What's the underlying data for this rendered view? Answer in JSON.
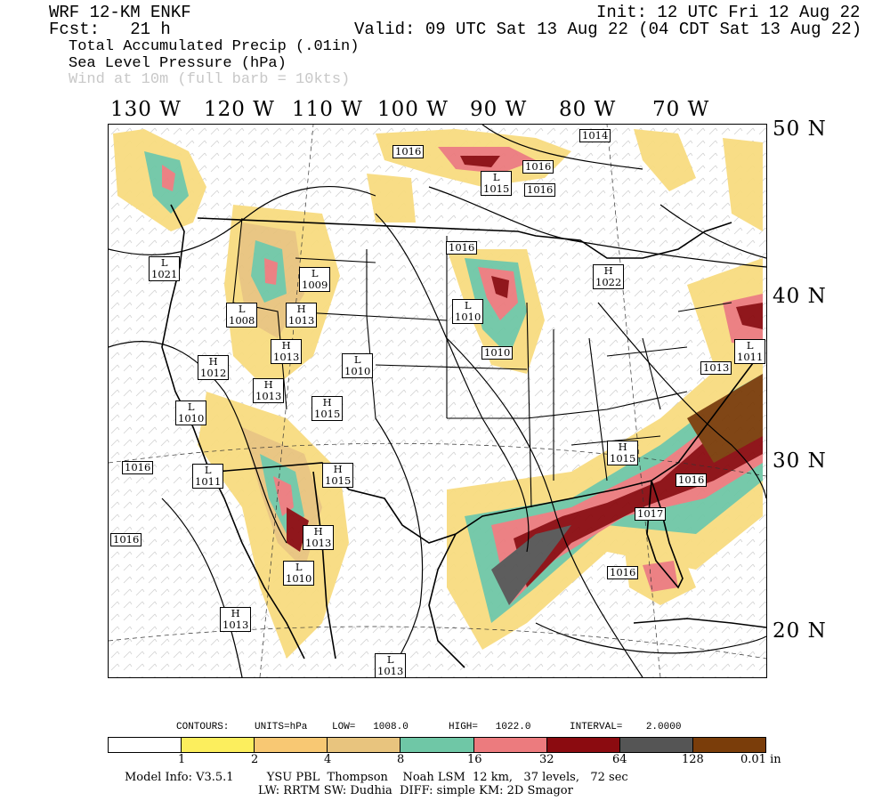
{
  "header": {
    "model": "WRF 12-KM ENKF",
    "fcst": "Fcst:   21 h",
    "init": "Init: 12 UTC Fri 12 Aug 22",
    "valid": "Valid: 09 UTC Sat 13 Aug 22 (04 CDT Sat 13 Aug 22)",
    "field1": "Total Accumulated Precip (.01in)",
    "field2": "Sea Level Pressure (hPa)",
    "field3": "Wind at 10m (full barb = 10kts)"
  },
  "axes": {
    "longitudes": [
      "130 W",
      "120 W",
      "110 W",
      "100 W",
      "90 W",
      "80 W",
      "70 W"
    ],
    "latitudes": [
      "50 N",
      "40 N",
      "30 N",
      "20 N"
    ]
  },
  "pressure_centers": [
    {
      "letter": "",
      "value": "1016"
    },
    {
      "letter": "",
      "value": "1014"
    },
    {
      "letter": "",
      "value": "1016"
    },
    {
      "letter": "L",
      "value": "1015"
    },
    {
      "letter": "",
      "value": "1016"
    },
    {
      "letter": "L",
      "value": "1021"
    },
    {
      "letter": "L",
      "value": "1009"
    },
    {
      "letter": "",
      "value": "1016"
    },
    {
      "letter": "H",
      "value": "1022"
    },
    {
      "letter": "L",
      "value": "1008"
    },
    {
      "letter": "H",
      "value": "1013"
    },
    {
      "letter": "H",
      "value": "1013"
    },
    {
      "letter": "L",
      "value": "1010"
    },
    {
      "letter": "",
      "value": "1010"
    },
    {
      "letter": "H",
      "value": "1012"
    },
    {
      "letter": "L",
      "value": "1010"
    },
    {
      "letter": "H",
      "value": "1013"
    },
    {
      "letter": "H",
      "value": "1015"
    },
    {
      "letter": "L",
      "value": "1010"
    },
    {
      "letter": "",
      "value": "1013"
    },
    {
      "letter": "",
      "value": "1016"
    },
    {
      "letter": "L",
      "value": "1011"
    },
    {
      "letter": "H",
      "value": "1015"
    },
    {
      "letter": "H",
      "value": "1015"
    },
    {
      "letter": "",
      "value": "1016"
    },
    {
      "letter": "",
      "value": "1017"
    },
    {
      "letter": "",
      "value": "1016"
    },
    {
      "letter": "H",
      "value": "1013"
    },
    {
      "letter": "L",
      "value": "1010"
    },
    {
      "letter": "H",
      "value": "1013"
    },
    {
      "letter": "",
      "value": "1016"
    },
    {
      "letter": "L",
      "value": "1013"
    },
    {
      "letter": "L",
      "value": "1011"
    }
  ],
  "contour_info": {
    "contours": "CONTOURS:",
    "units": "UNITS=hPa",
    "low": "LOW=   1008.0",
    "high": "HIGH=   1022.0",
    "interval": "INTERVAL=    2.0000"
  },
  "colorbar": {
    "colors": [
      "#ffffff",
      "#fcee5d",
      "#f8c873",
      "#e8c47e",
      "#6fc7a6",
      "#ec7b7e",
      "#8b0b10",
      "#555555",
      "#7a3d0a"
    ],
    "ticks": [
      "1",
      "2",
      "4",
      "8",
      "16",
      "32",
      "64",
      "128",
      "0.01 in"
    ]
  },
  "footer": {
    "line1": "Model Info: V3.5.1         YSU PBL  Thompson    Noah LSM  12 km,   37 levels,   72 sec",
    "line2": "LW: RRTM SW: Dudhia  DIFF: simple KM: 2D Smagor"
  }
}
